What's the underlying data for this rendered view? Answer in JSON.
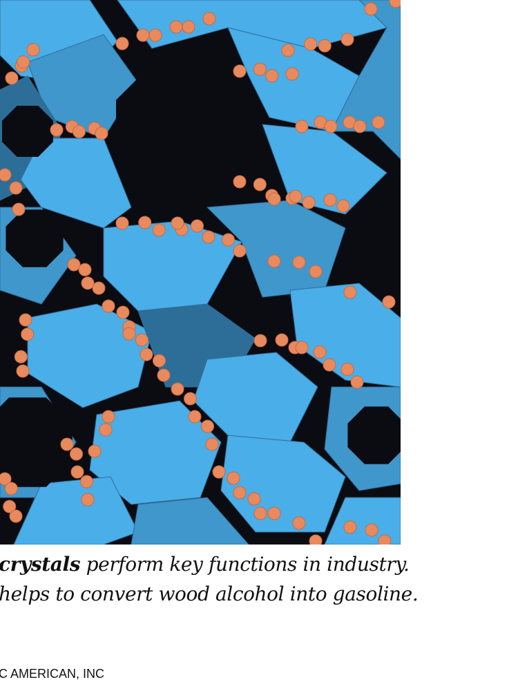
{
  "figure": {
    "subject": "molecular framework of zeolite crystal",
    "colors": {
      "background": "#0b0b12",
      "framework_light": "#4aaee8",
      "framework_mid": "#3f97cc",
      "framework_dark": "#2d6e99",
      "oxygen_atoms": "#e98a5e"
    }
  },
  "caption": {
    "line1_bold": "crystals",
    "line1_rest": " perform key functions in industry.",
    "line2": "helps to convert wood alcohol into gasoline."
  },
  "credit": "C AMERICAN, INC"
}
